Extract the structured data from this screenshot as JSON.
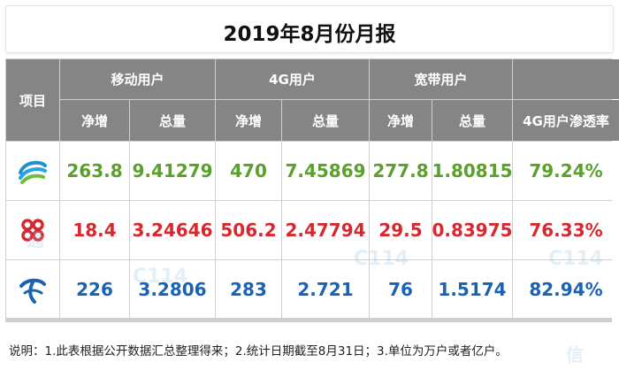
{
  "title": "2019年8月份月报",
  "headers": {
    "item": "项目",
    "groups": [
      "移动用户",
      "4G用户",
      "宽带用户"
    ],
    "net_add": "净增",
    "total": "总量",
    "penetration": "4G用户渗透率"
  },
  "rows": [
    {
      "operator_icon": "china-mobile-logo",
      "color": "#5aa12a",
      "values": [
        "263.8",
        "9.41279",
        "470",
        "7.45869",
        "277.8",
        "1.80815",
        "79.24%"
      ]
    },
    {
      "operator_icon": "china-unicom-logo",
      "color": "#d8282f",
      "values": [
        "18.4",
        "3.24646",
        "506.2",
        "2.47794",
        "29.5",
        "0.83975",
        "76.33%"
      ]
    },
    {
      "operator_icon": "china-telecom-logo",
      "color": "#1a62b2",
      "values": [
        "226",
        "3.2806",
        "283",
        "2.721",
        "76",
        "1.5174",
        "82.94%"
      ]
    }
  ],
  "footnote": "说明：1.此表根据公开数据汇总整理得来；2.统计日期截至8月31日；3.单位为万户或者亿户。"
}
